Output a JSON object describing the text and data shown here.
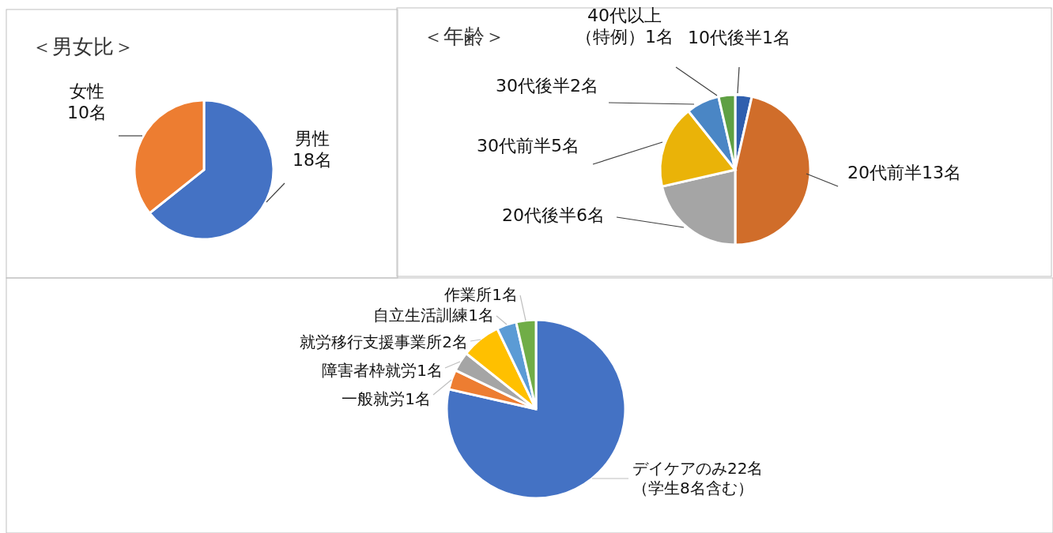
{
  "chart_data": [
    {
      "type": "pie",
      "title": "＜男女比＞",
      "categories": [
        "男性",
        "女性"
      ],
      "values": [
        18,
        10
      ],
      "colors": [
        "#4472c4",
        "#ed7d31"
      ],
      "value_labels": [
        "18名",
        "10名"
      ]
    },
    {
      "type": "pie",
      "title": "＜年齢＞",
      "categories": [
        "10代後半",
        "20代前半",
        "20代後半",
        "30代前半",
        "30代後半",
        "40代以上（特例）"
      ],
      "values": [
        1,
        13,
        6,
        5,
        2,
        1
      ],
      "colors": [
        "#2f5fae",
        "#d06d2a",
        "#a5a5a5",
        "#eab308",
        "#4a86c5",
        "#5fa043"
      ],
      "value_labels": [
        "1名",
        "13名",
        "6名",
        "5名",
        "2名",
        "1名"
      ]
    },
    {
      "type": "pie",
      "categories": [
        "デイケアのみ",
        "一般就労",
        "障害者枠就労",
        "就労移行支援事業所",
        "自立生活訓練",
        "作業所"
      ],
      "values": [
        22,
        1,
        1,
        2,
        1,
        1
      ],
      "colors": [
        "#4472c4",
        "#ed7d31",
        "#a5a5a5",
        "#ffc000",
        "#5b9bd5",
        "#70ad47"
      ],
      "value_labels": [
        "22名（学生8名含む）",
        "1名",
        "1名",
        "2名",
        "1名",
        "1名"
      ]
    }
  ]
}
